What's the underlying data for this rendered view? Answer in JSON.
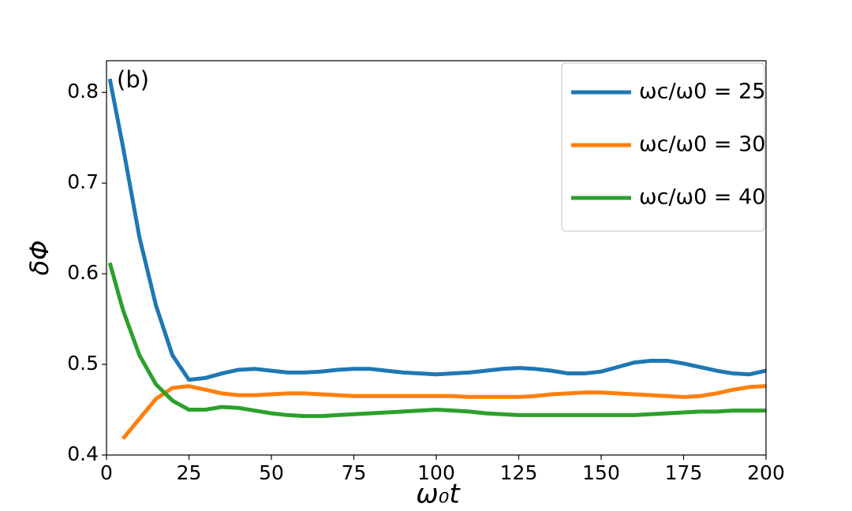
{
  "chart_data": {
    "type": "line",
    "annotation": "(b)",
    "x_label": "ω₀t",
    "y_label": "δΦ",
    "xlim": [
      0,
      200
    ],
    "ylim": [
      0.4,
      0.835
    ],
    "xticks": [
      0,
      25,
      50,
      75,
      100,
      125,
      150,
      175,
      200
    ],
    "yticks": [
      0.4,
      0.5,
      0.6,
      0.7,
      0.8
    ],
    "legend": "upper right",
    "series": [
      {
        "name": "ωc/ω0 = 25",
        "color": "#1f77b4",
        "x": [
          1,
          5,
          10,
          15,
          20,
          25,
          30,
          35,
          40,
          45,
          50,
          55,
          60,
          65,
          70,
          75,
          80,
          85,
          90,
          95,
          100,
          105,
          110,
          115,
          120,
          125,
          130,
          135,
          140,
          145,
          150,
          155,
          160,
          165,
          170,
          175,
          180,
          185,
          190,
          195,
          200
        ],
        "values": [
          0.815,
          0.74,
          0.64,
          0.565,
          0.51,
          0.483,
          0.485,
          0.49,
          0.494,
          0.495,
          0.493,
          0.491,
          0.491,
          0.492,
          0.494,
          0.495,
          0.495,
          0.493,
          0.491,
          0.49,
          0.489,
          0.49,
          0.491,
          0.493,
          0.495,
          0.496,
          0.495,
          0.493,
          0.49,
          0.49,
          0.492,
          0.497,
          0.502,
          0.504,
          0.504,
          0.501,
          0.497,
          0.493,
          0.49,
          0.489,
          0.493
        ]
      },
      {
        "name": "ωc/ω0 = 30",
        "color": "#ff7f0e",
        "x": [
          5,
          10,
          15,
          20,
          25,
          30,
          35,
          40,
          45,
          50,
          55,
          60,
          65,
          70,
          75,
          80,
          85,
          90,
          95,
          100,
          105,
          110,
          115,
          120,
          125,
          130,
          135,
          140,
          145,
          150,
          155,
          160,
          165,
          170,
          175,
          180,
          185,
          190,
          195,
          200
        ],
        "values": [
          0.418,
          0.44,
          0.462,
          0.474,
          0.476,
          0.472,
          0.468,
          0.466,
          0.466,
          0.467,
          0.468,
          0.468,
          0.467,
          0.466,
          0.465,
          0.465,
          0.465,
          0.465,
          0.465,
          0.465,
          0.465,
          0.464,
          0.464,
          0.464,
          0.464,
          0.465,
          0.467,
          0.468,
          0.469,
          0.469,
          0.468,
          0.467,
          0.466,
          0.465,
          0.464,
          0.465,
          0.468,
          0.472,
          0.475,
          0.476
        ]
      },
      {
        "name": "ωc/ω0 = 40",
        "color": "#2ca02c",
        "x": [
          1,
          5,
          10,
          15,
          20,
          25,
          30,
          35,
          40,
          45,
          50,
          55,
          60,
          65,
          70,
          75,
          80,
          85,
          90,
          95,
          100,
          105,
          110,
          115,
          120,
          125,
          130,
          135,
          140,
          145,
          150,
          155,
          160,
          165,
          170,
          175,
          180,
          185,
          190,
          195,
          200
        ],
        "values": [
          0.612,
          0.56,
          0.51,
          0.478,
          0.46,
          0.45,
          0.45,
          0.453,
          0.452,
          0.449,
          0.446,
          0.444,
          0.443,
          0.443,
          0.444,
          0.445,
          0.446,
          0.447,
          0.448,
          0.449,
          0.45,
          0.449,
          0.448,
          0.446,
          0.445,
          0.444,
          0.444,
          0.444,
          0.444,
          0.444,
          0.444,
          0.444,
          0.444,
          0.445,
          0.446,
          0.447,
          0.448,
          0.448,
          0.449,
          0.449,
          0.449
        ]
      }
    ]
  }
}
